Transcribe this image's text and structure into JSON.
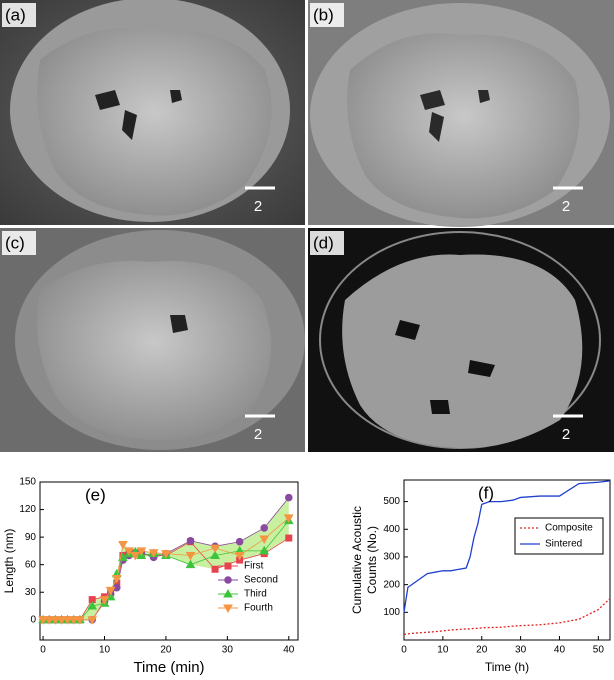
{
  "panels": [
    {
      "label": "(a)",
      "scale": "2"
    },
    {
      "label": "(b)",
      "scale": "2"
    },
    {
      "label": "(c)",
      "scale": "2"
    },
    {
      "label": "(d)",
      "scale": "2"
    }
  ],
  "chart_data": [
    {
      "type": "line",
      "panel_label": "(e)",
      "xlabel": "Time (min)",
      "ylabel": "Length (nm)",
      "x": [
        0,
        1,
        2,
        3,
        4,
        5,
        6,
        8,
        10,
        11,
        12,
        13,
        14,
        15,
        16,
        18,
        20,
        24,
        28,
        32,
        36,
        40
      ],
      "series": [
        {
          "name": "First",
          "color": "#e8424f",
          "marker": "square",
          "values": [
            0,
            0,
            0,
            0,
            0,
            0,
            0,
            22,
            25,
            30,
            40,
            70,
            72,
            73,
            72,
            70,
            70,
            85,
            55,
            65,
            72,
            89
          ]
        },
        {
          "name": "Second",
          "color": "#8a4aa0",
          "marker": "circle",
          "values": [
            0,
            0,
            0,
            0,
            0,
            0,
            0,
            0,
            20,
            28,
            35,
            65,
            70,
            72,
            73,
            68,
            72,
            86,
            80,
            85,
            100,
            133
          ]
        },
        {
          "name": "Third",
          "color": "#3cc43c",
          "marker": "triangle-up",
          "values": [
            0,
            0,
            0,
            0,
            0,
            0,
            0,
            15,
            18,
            25,
            50,
            68,
            72,
            74,
            70,
            72,
            70,
            60,
            70,
            75,
            75,
            108
          ]
        },
        {
          "name": "Fourth",
          "color": "#f59542",
          "marker": "triangle-down",
          "values": [
            0,
            0,
            0,
            0,
            0,
            0,
            0,
            0,
            22,
            32,
            45,
            82,
            75,
            70,
            75,
            73,
            72,
            70,
            78,
            70,
            88,
            111
          ]
        }
      ],
      "xlim": [
        -0.5,
        41.5
      ],
      "ylim": [
        -22,
        150
      ],
      "xticks": [
        0,
        10,
        20,
        30,
        40
      ],
      "yticks": [
        0,
        30,
        60,
        90,
        120,
        150
      ],
      "envelope_color": "#c8f0a0",
      "legend": "lower right"
    },
    {
      "type": "line",
      "panel_label": "(f)",
      "xlabel": "Time (h)",
      "ylabel": [
        "Cumulative Acoustic",
        "Counts (No.)"
      ],
      "x": [
        0,
        1,
        2,
        4,
        6,
        8,
        10,
        12,
        14,
        16,
        17,
        18,
        19,
        20,
        21,
        22,
        25,
        28,
        30,
        35,
        40,
        45,
        50,
        53
      ],
      "series": [
        {
          "name": "Composite",
          "color": "#e02020",
          "dash": true,
          "values": [
            20,
            22,
            24,
            26,
            28,
            30,
            33,
            36,
            38,
            40,
            40,
            42,
            42,
            44,
            45,
            45,
            46,
            50,
            52,
            55,
            62,
            75,
            110,
            150
          ]
        },
        {
          "name": "Sintered",
          "color": "#2040d0",
          "dash": false,
          "values": [
            100,
            190,
            200,
            220,
            240,
            245,
            250,
            250,
            255,
            260,
            300,
            370,
            420,
            490,
            495,
            500,
            500,
            505,
            515,
            520,
            520,
            565,
            570,
            575
          ]
        }
      ],
      "xlim": [
        0,
        53
      ],
      "ylim": [
        0,
        578
      ],
      "xticks": [
        0,
        10,
        20,
        30,
        40,
        50
      ],
      "yticks": [
        100,
        200,
        300,
        400,
        500
      ],
      "legend": "center right"
    }
  ]
}
